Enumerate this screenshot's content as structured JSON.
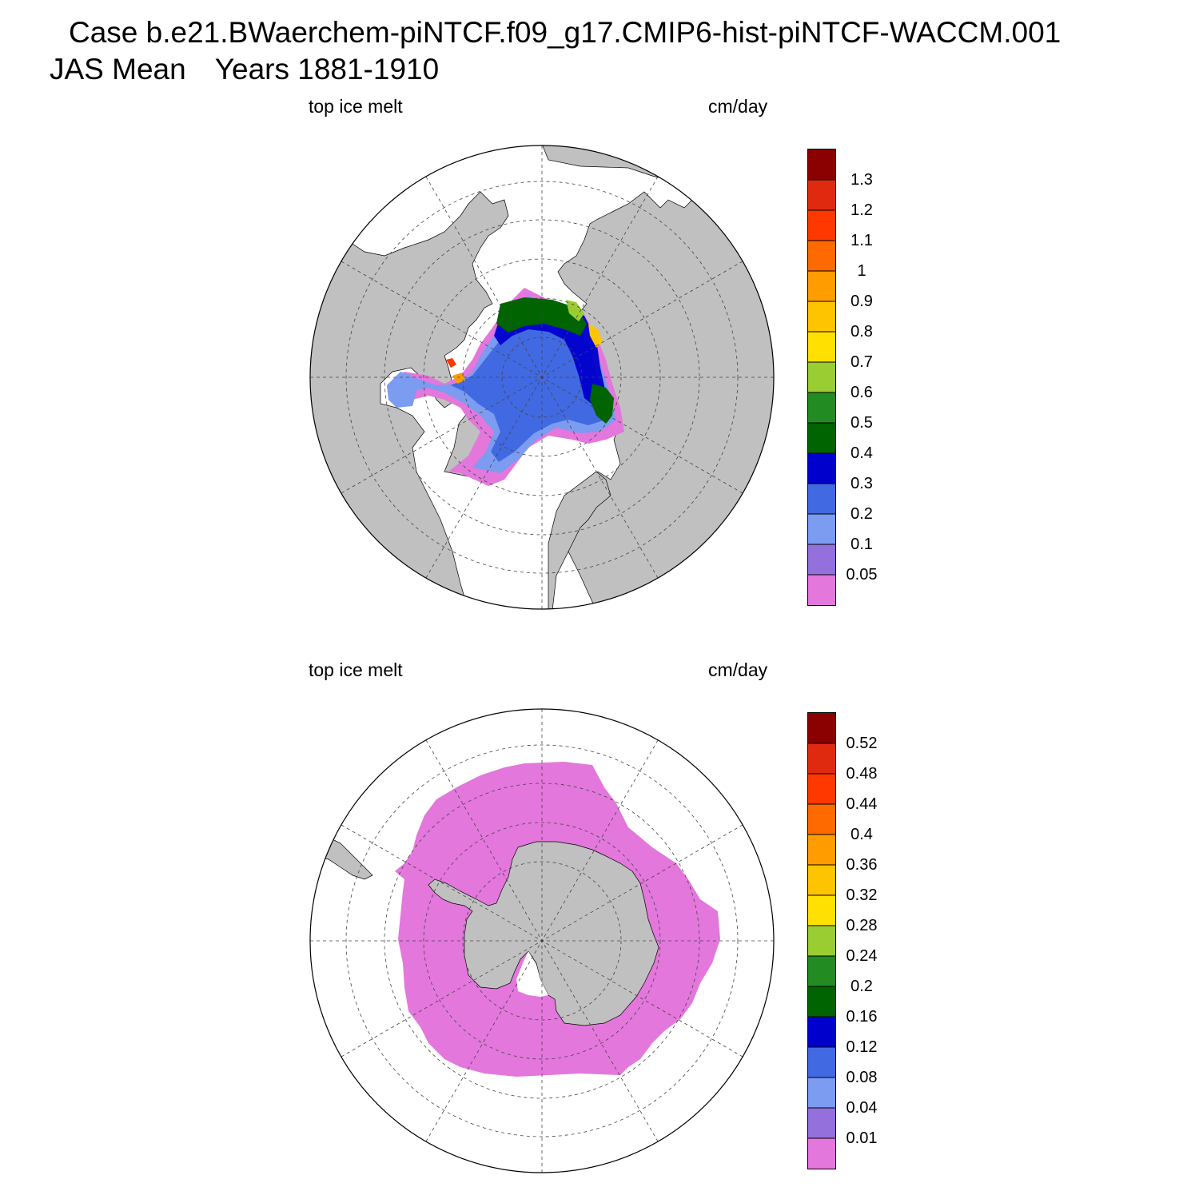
{
  "header": {
    "case_line": "Case b.e21.BWaerchem-piNTCF.f09_g17.CMIP6-hist-piNTCF-WACCM.001",
    "season": "JAS Mean",
    "years": "Years 1881-1910"
  },
  "colors": {
    "land": "#c0c0c0",
    "ocean": "#ffffff",
    "scale": [
      "#e377dc",
      "#9370db",
      "#7b9cf0",
      "#4169e1",
      "#0000cd",
      "#006400",
      "#228b22",
      "#9acd32",
      "#ffe000",
      "#ffc400",
      "#ff9c00",
      "#ff6a00",
      "#ff3800",
      "#e02a10",
      "#8b0000"
    ]
  },
  "panels": [
    {
      "hemisphere": "north",
      "left_label": "top ice melt",
      "right_label": "cm/day",
      "colorbar_labels": [
        "0.05",
        "0.1",
        "0.2",
        "0.3",
        "0.4",
        "0.5",
        "0.6",
        "0.7",
        "0.8",
        "0.9",
        "1",
        "1.1",
        "1.2",
        "1.3"
      ]
    },
    {
      "hemisphere": "south",
      "left_label": "top ice melt",
      "right_label": "cm/day",
      "colorbar_labels": [
        "0.01",
        "0.04",
        "0.08",
        "0.12",
        "0.16",
        "0.2",
        "0.24",
        "0.28",
        "0.32",
        "0.36",
        "0.4",
        "0.44",
        "0.48",
        "0.52"
      ]
    }
  ]
}
